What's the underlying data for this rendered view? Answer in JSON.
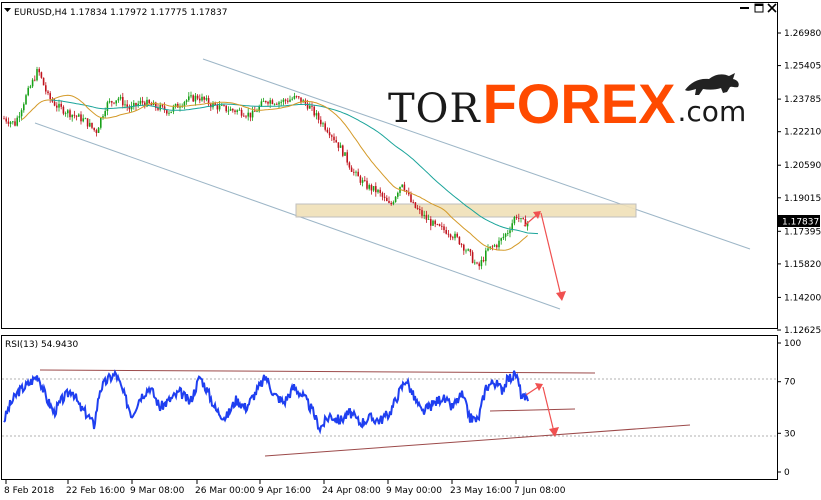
{
  "header": {
    "symbol_label": "EURUSD,H4",
    "ohlc_values": "1.17834 1.17972 1.17775 1.17837"
  },
  "logo": {
    "part1": "TOR",
    "part2": "FOREX",
    "part3": ".com",
    "bull_icon": "bull-icon"
  },
  "window": {
    "minimize_icon": "minimize-icon",
    "maximize_icon": "maximize-icon",
    "close_icon": "close-icon"
  },
  "colors": {
    "up_candle": "#19a119",
    "down_candle": "#c0141e",
    "ma_fast": "#d49a28",
    "ma_slow": "#1aa49a",
    "channel": "#9db6c7",
    "zone_fill": "#f0e0b8",
    "arrow": "#f05050",
    "rsi_line": "#1f3ff0",
    "rsi_trend": "#9c4a4a"
  },
  "chart_data": [
    {
      "type": "candlestick",
      "title": "EURUSD,H4",
      "price_axis_ticks": [
        "1.26980",
        "1.25405",
        "1.23785",
        "1.22210",
        "1.20590",
        "1.19015",
        "1.17395",
        "1.15820",
        "1.14200",
        "1.12625"
      ],
      "current_price_label": "1.17837",
      "time_axis_labels": [
        "8 Feb 2018",
        "22 Feb 16:00",
        "9 Mar 08:00",
        "26 Mar 00:00",
        "9 Apr 16:00",
        "24 Apr 08:00",
        "9 May 00:00",
        "23 May 16:00",
        "7 Jun 08:00"
      ],
      "ylim": [
        1.12625,
        1.2745
      ],
      "approx_close_path": [
        {
          "x": "8 Feb 2018",
          "y": 1.2275
        },
        {
          "x": "14 Feb 2018",
          "y": 1.248
        },
        {
          "x": "22 Feb 16:00",
          "y": 1.228
        },
        {
          "x": "9 Mar 08:00",
          "y": 1.236
        },
        {
          "x": "26 Mar 00:00",
          "y": 1.236
        },
        {
          "x": "9 Apr 16:00",
          "y": 1.234
        },
        {
          "x": "24 Apr 08:00",
          "y": 1.214
        },
        {
          "x": "9 May 00:00",
          "y": 1.192
        },
        {
          "x": "23 May 16:00",
          "y": 1.158
        },
        {
          "x": "7 Jun 08:00",
          "y": 1.17837
        }
      ],
      "resistance_zone": [
        1.1785,
        1.1855
      ]
    },
    {
      "type": "line",
      "title": "RSI(13) 54.9430",
      "axis_ticks": [
        "100",
        "70",
        "30",
        "0"
      ],
      "ylim": [
        0,
        100
      ],
      "last_value": 54.943
    }
  ]
}
